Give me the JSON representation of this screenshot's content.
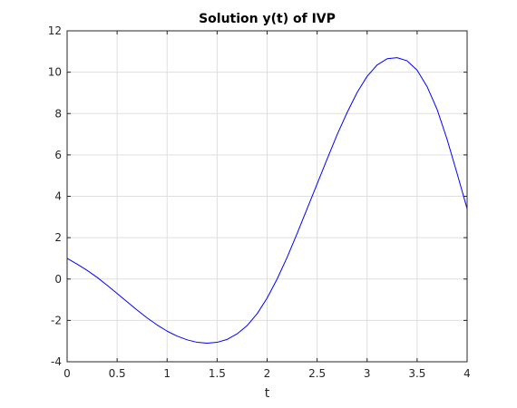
{
  "chart_data": {
    "type": "line",
    "title": "Solution y(t) of IVP",
    "xlabel": "t",
    "ylabel": "",
    "xlim": [
      0,
      4
    ],
    "ylim": [
      -4,
      12
    ],
    "xticks": [
      0,
      0.5,
      1,
      1.5,
      2,
      2.5,
      3,
      3.5,
      4
    ],
    "xtick_labels": [
      "0",
      "0.5",
      "1",
      "1.5",
      "2",
      "2.5",
      "3",
      "3.5",
      "4"
    ],
    "yticks": [
      -4,
      -2,
      0,
      2,
      4,
      6,
      8,
      10,
      12
    ],
    "ytick_labels": [
      "-4",
      "-2",
      "0",
      "2",
      "4",
      "6",
      "8",
      "10",
      "12"
    ],
    "grid": true,
    "colors": {
      "line": "#0000ff",
      "grid": "#dfdfdf",
      "axes": "#262626"
    },
    "series": [
      {
        "x": [
          0,
          0.1,
          0.2,
          0.3,
          0.4,
          0.5,
          0.6,
          0.7,
          0.8,
          0.9,
          1.0,
          1.1,
          1.2,
          1.3,
          1.4,
          1.5,
          1.6,
          1.7,
          1.8,
          1.9,
          2.0,
          2.1,
          2.2,
          2.3,
          2.4,
          2.5,
          2.6,
          2.7,
          2.8,
          2.9,
          3.0,
          3.1,
          3.2,
          3.3,
          3.4,
          3.5,
          3.6,
          3.7,
          3.8,
          3.9,
          4.0
        ],
        "y": [
          1.0,
          0.72,
          0.42,
          0.08,
          -0.3,
          -0.7,
          -1.1,
          -1.5,
          -1.88,
          -2.22,
          -2.52,
          -2.76,
          -2.94,
          -3.06,
          -3.1,
          -3.06,
          -2.92,
          -2.65,
          -2.25,
          -1.68,
          -0.92,
          0.0,
          1.05,
          2.2,
          3.4,
          4.6,
          5.8,
          6.98,
          8.05,
          9.02,
          9.8,
          10.35,
          10.65,
          10.7,
          10.55,
          10.1,
          9.3,
          8.2,
          6.75,
          5.1,
          3.4
        ]
      }
    ]
  }
}
